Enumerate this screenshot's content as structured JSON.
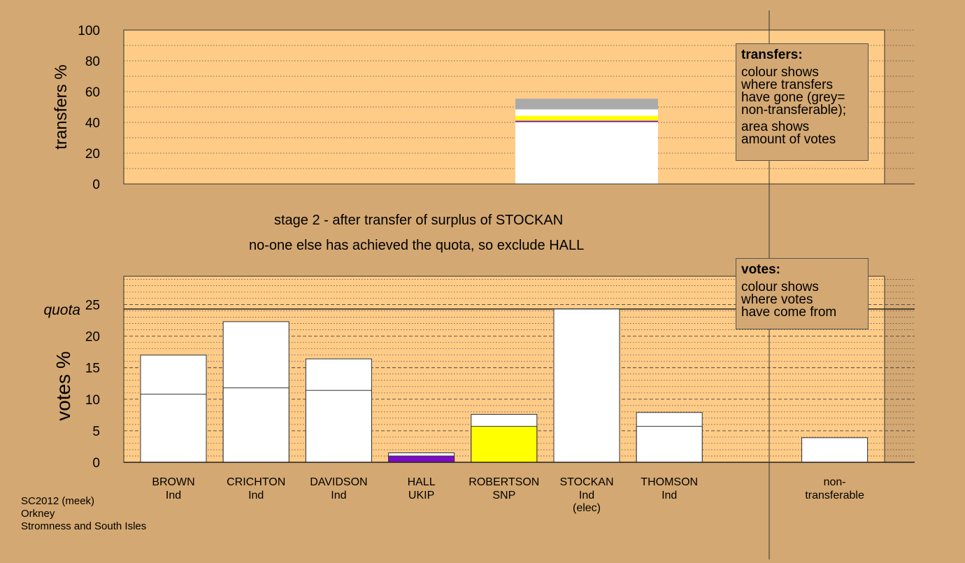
{
  "chart_data": [
    {
      "type": "bar",
      "ylabel": "transfers %",
      "ylim": [
        0,
        100
      ],
      "yticks": [
        0,
        20,
        40,
        60,
        80,
        100
      ],
      "grid": true,
      "stack": {
        "category": "STOCKAN",
        "total": 55.4,
        "segments": [
          {
            "from": 0,
            "to": 40.2,
            "color": "#ffffff"
          },
          {
            "from": 40.2,
            "to": 41.1,
            "color": "#7d0cc6"
          },
          {
            "from": 41.1,
            "to": 44.3,
            "color": "#ffff00"
          },
          {
            "from": 44.3,
            "to": 48.5,
            "color": "#ffffff"
          },
          {
            "from": 48.5,
            "to": 55.4,
            "color": "#aaaaaa"
          }
        ]
      }
    },
    {
      "type": "bar",
      "ylabel": "votes %",
      "ylim": [
        0,
        29.5
      ],
      "yticks": [
        0,
        5,
        10,
        15,
        20,
        25
      ],
      "quota": 24.3,
      "quota_label": "quota",
      "grid": true,
      "categories": [
        {
          "name": "BROWN",
          "party": "Ind",
          "first_pref": 10.8,
          "total": 17.0,
          "color": "#ffffff"
        },
        {
          "name": "CRICHTON",
          "party": "Ind",
          "first_pref": 11.8,
          "total": 22.3,
          "color": "#ffffff"
        },
        {
          "name": "DAVIDSON",
          "party": "Ind",
          "first_pref": 11.4,
          "total": 16.4,
          "color": "#ffffff"
        },
        {
          "name": "HALL",
          "party": "UKIP",
          "first_pref": 1.0,
          "total": 1.5,
          "color": "#7d0cc6"
        },
        {
          "name": "ROBERTSON",
          "party": "SNP",
          "first_pref": 5.7,
          "total": 7.6,
          "color": "#ffff00"
        },
        {
          "name": "STOCKAN",
          "party": "Ind",
          "extra": "(elec)",
          "first_pref": 24.3,
          "total": 24.3,
          "color": "#ffffff"
        },
        {
          "name": "THOMSON",
          "party": "Ind",
          "first_pref": 5.7,
          "total": 7.9,
          "color": "#ffffff"
        }
      ],
      "nontransferable": {
        "label_line1": "non-",
        "label_line2": "transferable",
        "total": 3.9
      }
    }
  ],
  "captions": {
    "line1": "stage 2 - after transfer of surplus of STOCKAN",
    "line2": "no-one else has achieved the quota, so exclude HALL"
  },
  "legend_transfers": {
    "title": "transfers:",
    "line1": "colour shows",
    "line2": "where transfers",
    "line3": "have gone (grey=",
    "line4": "non-transferable);",
    "line5": "area shows",
    "line6": "amount of votes"
  },
  "legend_votes": {
    "title": "votes:",
    "line1": "colour shows",
    "line2": "where votes",
    "line3": "have come from"
  },
  "footer": {
    "line1": "SC2012 (meek)",
    "line2": "Orkney",
    "line3": "Stromness and South Isles"
  },
  "colors": {
    "background": "#d4a872",
    "plot_area": "#ffcc88",
    "ukip": "#7d0cc6",
    "snp": "#ffff00",
    "nontransferable": "#aaaaaa"
  }
}
